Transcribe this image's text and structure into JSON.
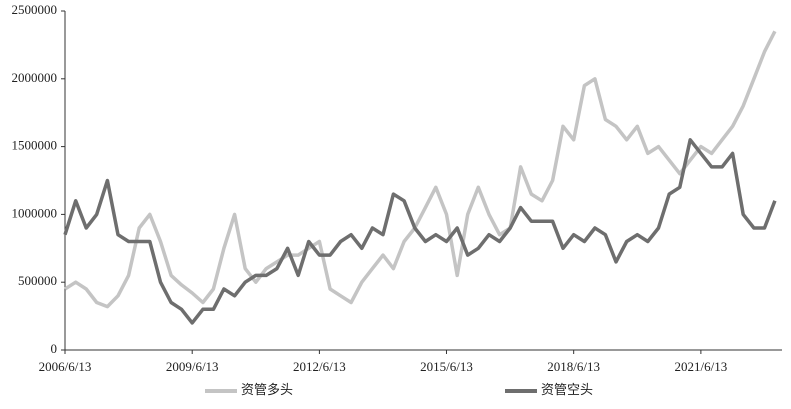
{
  "chart_data": {
    "type": "line",
    "x": [
      "2006/6/13",
      "2006/9/13",
      "2006/12/13",
      "2007/3/13",
      "2007/6/13",
      "2007/9/13",
      "2007/12/13",
      "2008/3/13",
      "2008/6/13",
      "2008/9/13",
      "2008/12/13",
      "2009/3/13",
      "2009/6/13",
      "2009/9/13",
      "2009/12/13",
      "2010/3/13",
      "2010/6/13",
      "2010/9/13",
      "2010/12/13",
      "2011/3/13",
      "2011/6/13",
      "2011/9/13",
      "2011/12/13",
      "2012/3/13",
      "2012/6/13",
      "2012/9/13",
      "2012/12/13",
      "2013/3/13",
      "2013/6/13",
      "2013/9/13",
      "2013/12/13",
      "2014/3/13",
      "2014/6/13",
      "2014/9/13",
      "2014/12/13",
      "2015/3/13",
      "2015/6/13",
      "2015/9/13",
      "2015/12/13",
      "2016/3/13",
      "2016/6/13",
      "2016/9/13",
      "2016/12/13",
      "2017/3/13",
      "2017/6/13",
      "2017/9/13",
      "2017/12/13",
      "2018/3/13",
      "2018/6/13",
      "2018/9/13",
      "2018/12/13",
      "2019/3/13",
      "2019/6/13",
      "2019/9/13",
      "2019/12/13",
      "2020/3/13",
      "2020/6/13",
      "2020/9/13",
      "2020/12/13",
      "2021/3/13",
      "2021/6/13",
      "2021/9/13",
      "2021/12/13",
      "2022/3/13",
      "2022/6/13",
      "2022/9/13",
      "2022/12/13",
      "2023/3/13"
    ],
    "series": [
      {
        "name": "资管多头",
        "color": "#c4c4c4",
        "values": [
          450000,
          500000,
          450000,
          350000,
          320000,
          400000,
          550000,
          900000,
          1000000,
          800000,
          550000,
          480000,
          420000,
          350000,
          450000,
          750000,
          1000000,
          600000,
          500000,
          600000,
          650000,
          700000,
          700000,
          750000,
          800000,
          450000,
          400000,
          350000,
          500000,
          600000,
          700000,
          600000,
          800000,
          900000,
          1050000,
          1200000,
          1000000,
          550000,
          1000000,
          1200000,
          1000000,
          850000,
          900000,
          1350000,
          1150000,
          1100000,
          1250000,
          1650000,
          1550000,
          1950000,
          2000000,
          1700000,
          1650000,
          1550000,
          1650000,
          1450000,
          1500000,
          1400000,
          1300000,
          1400000,
          1500000,
          1450000,
          1550000,
          1650000,
          1800000,
          2000000,
          2200000,
          2350000
        ]
      },
      {
        "name": "资管空头",
        "color": "#6e6e6e",
        "values": [
          850000,
          1100000,
          900000,
          1000000,
          1250000,
          850000,
          800000,
          800000,
          800000,
          500000,
          350000,
          300000,
          200000,
          300000,
          300000,
          450000,
          400000,
          500000,
          550000,
          550000,
          600000,
          750000,
          550000,
          800000,
          700000,
          700000,
          800000,
          850000,
          750000,
          900000,
          850000,
          1150000,
          1100000,
          900000,
          800000,
          850000,
          800000,
          900000,
          700000,
          750000,
          850000,
          800000,
          900000,
          1050000,
          950000,
          950000,
          950000,
          750000,
          850000,
          800000,
          900000,
          850000,
          650000,
          800000,
          850000,
          800000,
          900000,
          1150000,
          1200000,
          1550000,
          1450000,
          1350000,
          1350000,
          1450000,
          1000000,
          900000,
          900000,
          1100000
        ]
      }
    ],
    "xlim": [
      "2006/6/13",
      "2023/5/13"
    ],
    "xticks": [
      "2006/6/13",
      "2009/6/13",
      "2012/6/13",
      "2015/6/13",
      "2018/6/13",
      "2021/6/13"
    ],
    "ylim": [
      0,
      2500000
    ],
    "yticks": [
      0,
      500000,
      1000000,
      1500000,
      2000000,
      2500000
    ],
    "legend": "bottom"
  }
}
